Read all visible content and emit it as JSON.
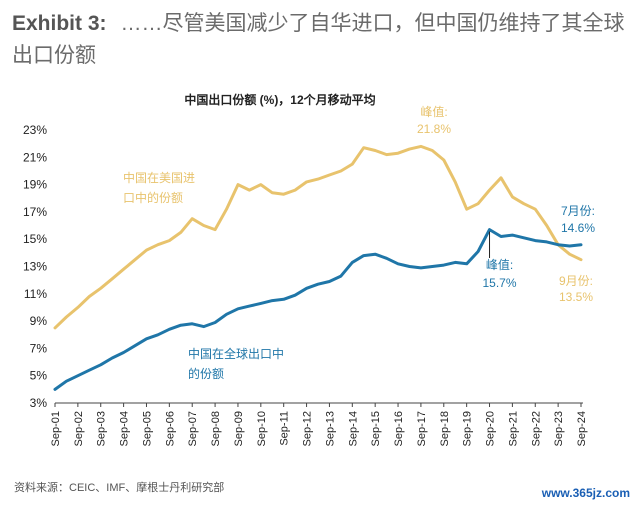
{
  "heading": {
    "exhibit": "Exhibit 3:",
    "text": "……尽管美国减少了自华进口，但中国仍维持了其全球出口份额"
  },
  "source": "资料来源：CEIC、IMF、摩根士丹利研究部",
  "watermark": "www.365jz.com",
  "colors": {
    "us_series": "#e8c36d",
    "global_series": "#1f76a8",
    "text": "#222222"
  },
  "chart_data": {
    "type": "line",
    "title": "中国出口份额 (%)，12个月移动平均",
    "xlabel": "",
    "ylabel": "",
    "ylim": [
      3,
      23
    ],
    "yticks": [
      "23%",
      "21%",
      "19%",
      "17%",
      "15%",
      "13%",
      "11%",
      "9%",
      "7%",
      "5%",
      "3%"
    ],
    "xticks": [
      "Sep-01",
      "Sep-02",
      "Sep-03",
      "Sep-04",
      "Sep-05",
      "Sep-06",
      "Sep-07",
      "Sep-08",
      "Sep-09",
      "Sep-10",
      "Sep-11",
      "Sep-12",
      "Sep-13",
      "Sep-14",
      "Sep-15",
      "Sep-16",
      "Sep-17",
      "Sep-18",
      "Sep-19",
      "Sep-20",
      "Sep-21",
      "Sep-22",
      "Sep-23",
      "Sep-24"
    ],
    "grid": false,
    "legend": "inline labels",
    "x": [
      2001.67,
      2002.17,
      2002.67,
      2003.17,
      2003.67,
      2004.17,
      2004.67,
      2005.17,
      2005.67,
      2006.17,
      2006.67,
      2007.17,
      2007.67,
      2008.17,
      2008.67,
      2009.17,
      2009.67,
      2010.17,
      2010.67,
      2011.17,
      2011.67,
      2012.17,
      2012.67,
      2013.17,
      2013.67,
      2014.17,
      2014.67,
      2015.17,
      2015.67,
      2016.17,
      2016.67,
      2017.17,
      2017.67,
      2018.17,
      2018.67,
      2019.17,
      2019.67,
      2020.17,
      2020.67,
      2021.17,
      2021.67,
      2022.17,
      2022.67,
      2023.17,
      2023.67,
      2024.17,
      2024.67
    ],
    "series": [
      {
        "name": "中国在美国进口中的份额",
        "color": "#e8c36d",
        "values": [
          8.5,
          9.3,
          10.0,
          10.8,
          11.4,
          12.1,
          12.8,
          13.5,
          14.2,
          14.6,
          14.9,
          15.5,
          16.5,
          16.0,
          15.7,
          17.2,
          19.0,
          18.6,
          19.0,
          18.4,
          18.3,
          18.6,
          19.2,
          19.4,
          19.7,
          20.0,
          20.5,
          21.7,
          21.5,
          21.2,
          21.3,
          21.6,
          21.8,
          21.5,
          20.8,
          19.2,
          17.2,
          17.6,
          18.6,
          19.5,
          18.1,
          17.6,
          17.2,
          16.0,
          14.6,
          13.9,
          13.5
        ]
      },
      {
        "name": "中国在全球出口中的份额",
        "color": "#1f76a8",
        "values": [
          4.0,
          4.6,
          5.0,
          5.4,
          5.8,
          6.3,
          6.7,
          7.2,
          7.7,
          8.0,
          8.4,
          8.7,
          8.8,
          8.6,
          8.9,
          9.5,
          9.9,
          10.1,
          10.3,
          10.5,
          10.6,
          10.9,
          11.4,
          11.7,
          11.9,
          12.3,
          13.3,
          13.8,
          13.9,
          13.6,
          13.2,
          13.0,
          12.9,
          13.0,
          13.1,
          13.3,
          13.2,
          14.1,
          15.7,
          15.2,
          15.3,
          15.1,
          14.9,
          14.8,
          14.6,
          14.5,
          14.6
        ]
      }
    ],
    "annotations": {
      "us_label": [
        "中国在美国进",
        "口中的份额"
      ],
      "global_label": [
        "中国在全球出口中",
        "的份额"
      ],
      "peak_us_title": "峰值:",
      "peak_us_value": "21.8%",
      "peak_global_title": "峰值:",
      "peak_global_value": "15.7%",
      "last_us_title": "9月份:",
      "last_us_value": "13.5%",
      "last_global_title": "7月份:",
      "last_global_value": "14.6%"
    }
  }
}
